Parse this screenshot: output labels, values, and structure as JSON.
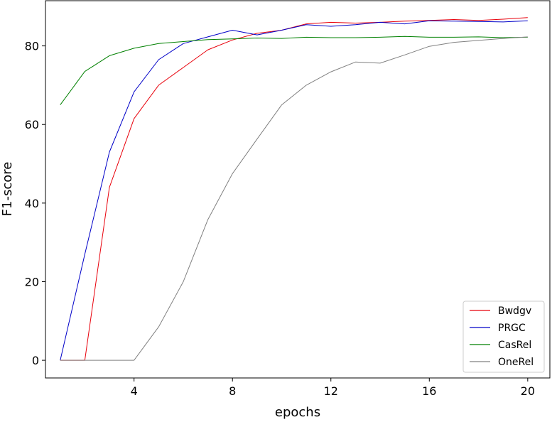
{
  "chart_data": {
    "type": "line",
    "xlabel": "epochs",
    "ylabel": "F1-score",
    "xlim": [
      0.4,
      20.9
    ],
    "ylim": [
      -4.5,
      91.5
    ],
    "xticks": [
      4,
      8,
      12,
      16,
      20
    ],
    "yticks": [
      0,
      20,
      40,
      60,
      80
    ],
    "grid": false,
    "legend_position": "lower-right",
    "x": [
      1,
      2,
      3,
      4,
      5,
      6,
      7,
      8,
      9,
      10,
      11,
      12,
      13,
      14,
      15,
      16,
      17,
      18,
      19,
      20
    ],
    "series": [
      {
        "name": "Bwdgv",
        "color": "#e8000b",
        "values": [
          0,
          0,
          44,
          61.5,
          70,
          74.5,
          79,
          81.5,
          83.2,
          84,
          85.6,
          86,
          85.8,
          86,
          86.3,
          86.5,
          86.7,
          86.5,
          86.8,
          87.2
        ]
      },
      {
        "name": "PRGC",
        "color": "#0000c8",
        "values": [
          0,
          27,
          53,
          68.3,
          76.5,
          80.6,
          82.3,
          84,
          82.8,
          84,
          85.4,
          85,
          85.4,
          86,
          85.6,
          86.4,
          86.3,
          86.2,
          86.1,
          86.4
        ]
      },
      {
        "name": "CasRel",
        "color": "#008000",
        "values": [
          65,
          73.5,
          77.5,
          79.4,
          80.6,
          81.1,
          81.6,
          81.8,
          82,
          81.9,
          82.2,
          82.1,
          82.1,
          82.2,
          82.4,
          82.2,
          82.2,
          82.3,
          82.1,
          82.2
        ]
      },
      {
        "name": "OneRel",
        "color": "#808080",
        "values": [
          0,
          0,
          0,
          0,
          8.5,
          20,
          35.8,
          47.5,
          56.3,
          65,
          70,
          73.4,
          75.9,
          75.6,
          77.7,
          79.9,
          80.9,
          81.4,
          81.9,
          82.3
        ]
      }
    ]
  }
}
